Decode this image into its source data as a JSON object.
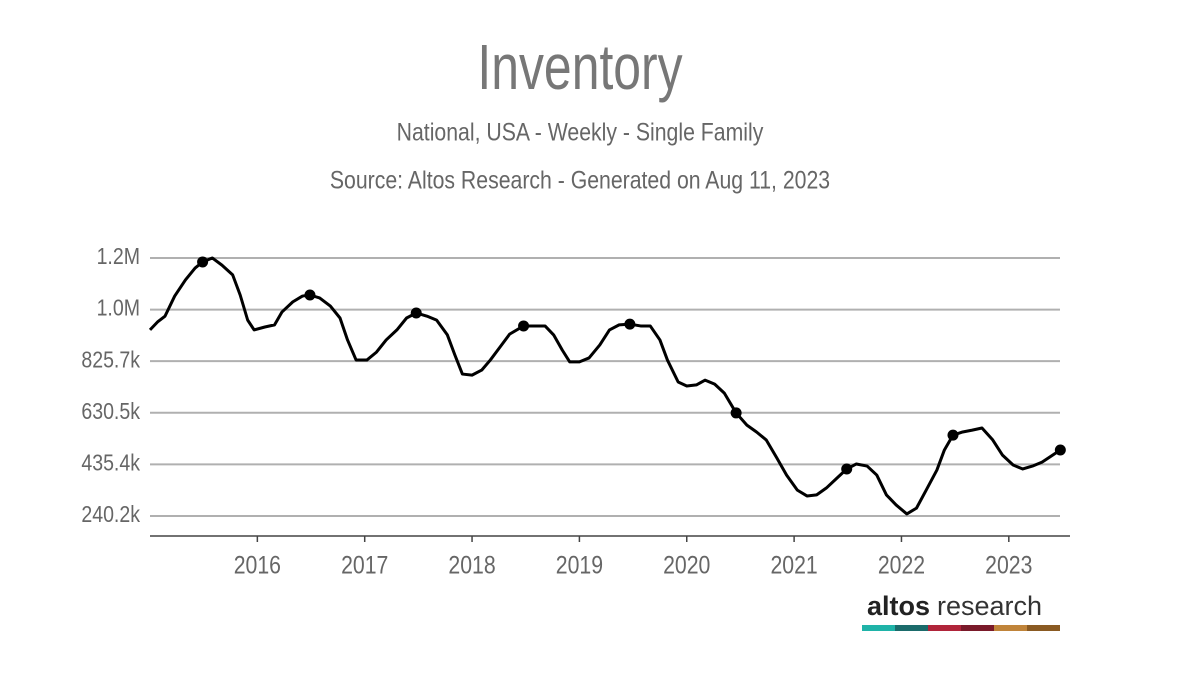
{
  "chart_data": {
    "type": "line",
    "title": "Inventory",
    "subtitle": "National, USA - Weekly - Single Family",
    "source": "Source: Altos Research - Generated on Aug 11, 2023",
    "brand": "altos",
    "brand_suffix": "research",
    "x": [
      2015.0,
      2015.07,
      2015.14,
      2015.23,
      2015.33,
      2015.42,
      2015.49,
      2015.58,
      2015.67,
      2015.77,
      2015.84,
      2015.91,
      2015.97,
      2016.07,
      2016.16,
      2016.23,
      2016.33,
      2016.42,
      2016.49,
      2016.58,
      2016.68,
      2016.77,
      2016.84,
      2016.92,
      2017.02,
      2017.11,
      2017.2,
      2017.3,
      2017.39,
      2017.48,
      2017.58,
      2017.67,
      2017.77,
      2017.84,
      2017.91,
      2018.0,
      2018.09,
      2018.17,
      2018.26,
      2018.35,
      2018.48,
      2018.59,
      2018.68,
      2018.76,
      2018.84,
      2018.91,
      2019.0,
      2019.09,
      2019.19,
      2019.28,
      2019.37,
      2019.47,
      2019.57,
      2019.66,
      2019.75,
      2019.82,
      2019.92,
      2020.0,
      2020.09,
      2020.17,
      2020.26,
      2020.35,
      2020.46,
      2020.56,
      2020.65,
      2020.74,
      2020.84,
      2020.93,
      2021.03,
      2021.12,
      2021.21,
      2021.3,
      2021.4,
      2021.49,
      2021.58,
      2021.68,
      2021.77,
      2021.86,
      2021.95,
      2022.05,
      2022.14,
      2022.23,
      2022.33,
      2022.4,
      2022.48,
      2022.57,
      2022.66,
      2022.75,
      2022.85,
      2022.94,
      2023.04,
      2023.13,
      2023.22,
      2023.31,
      2023.41,
      2023.48
    ],
    "series": [
      {
        "color": "#000000",
        "marker_indices": [
          6,
          18,
          29,
          40,
          51,
          62,
          73,
          84,
          95
        ],
        "values": [
          944000,
          974000,
          996000,
          1072000,
          1133000,
          1178000,
          1201000,
          1216000,
          1189000,
          1152000,
          1076000,
          981000,
          944000,
          955000,
          963000,
          1012000,
          1050000,
          1072000,
          1076000,
          1065000,
          1034000,
          989000,
          906000,
          830000,
          830000,
          860000,
          906000,
          944000,
          989000,
          1008000,
          996000,
          981000,
          925000,
          849000,
          777000,
          773000,
          792000,
          830000,
          879000,
          928000,
          959000,
          959000,
          959000,
          925000,
          868000,
          823000,
          823000,
          838000,
          887000,
          944000,
          963000,
          966000,
          959000,
          959000,
          906000,
          830000,
          747000,
          732000,
          736000,
          754000,
          739000,
          705000,
          630000,
          584000,
          558000,
          528000,
          459000,
          395000,
          338000,
          316000,
          320000,
          346000,
          384000,
          418000,
          437000,
          429000,
          395000,
          320000,
          282000,
          248000,
          270000,
          338000,
          414000,
          490000,
          546000,
          558000,
          565000,
          573000,
          528000,
          471000,
          433000,
          418000,
          429000,
          444000,
          471000,
          490000
        ]
      }
    ],
    "xlim": [
      2015.0,
      2023.57
    ],
    "xticks": [
      2016,
      2017,
      2018,
      2019,
      2020,
      2021,
      2022,
      2023
    ],
    "ylim": [
      164600,
      1284000
    ],
    "yticks": [
      {
        "value": 240200,
        "label": "240.2k"
      },
      {
        "value": 435400,
        "label": "435.4k"
      },
      {
        "value": 630500,
        "label": "630.5k"
      },
      {
        "value": 825700,
        "label": "825.7k"
      },
      {
        "value": 1020800,
        "label": "1.0M"
      },
      {
        "value": 1215900,
        "label": "1.2M"
      }
    ],
    "grid": true
  }
}
